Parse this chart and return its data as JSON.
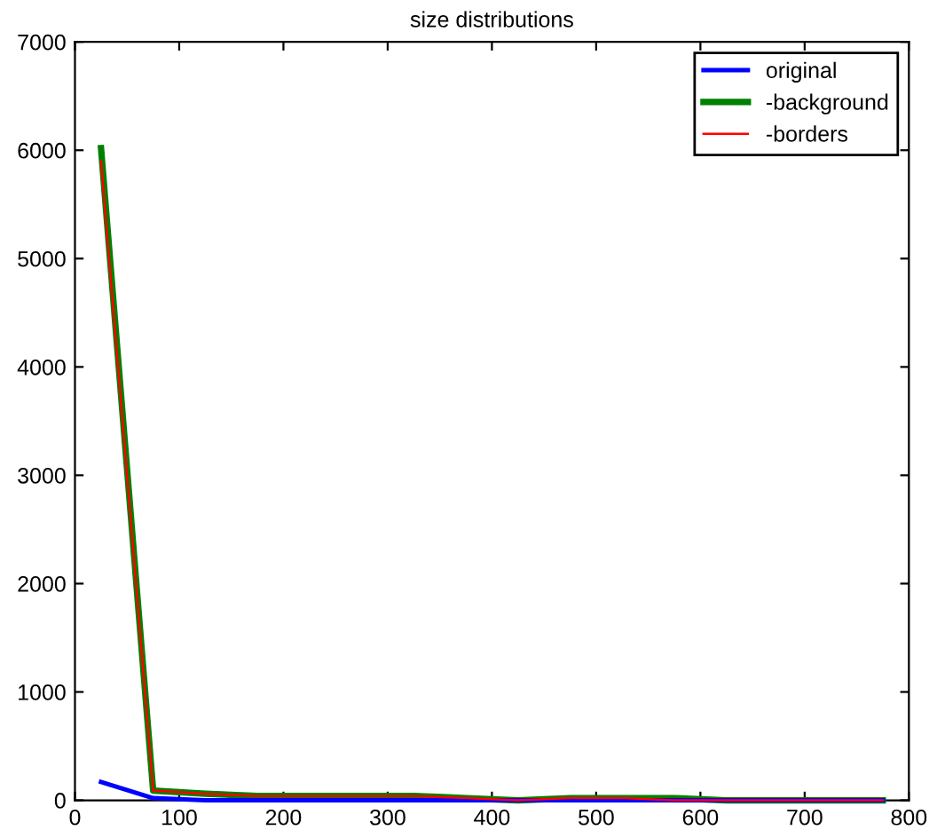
{
  "chart_data": {
    "type": "line",
    "title": "size distributions",
    "x": [
      25,
      75,
      125,
      175,
      225,
      275,
      325,
      375,
      425,
      475,
      525,
      575,
      625,
      675,
      725,
      775
    ],
    "series": [
      {
        "name": "original",
        "color": "#0000ff",
        "values": [
          170,
          20,
          0,
          0,
          0,
          0,
          0,
          0,
          0,
          0,
          0,
          0,
          0,
          0,
          0,
          0
        ]
      },
      {
        "name": "-background",
        "color": "#008000",
        "values": [
          6020,
          90,
          60,
          40,
          40,
          40,
          40,
          20,
          0,
          20,
          20,
          20,
          0,
          0,
          0,
          0
        ]
      },
      {
        "name": "-borders",
        "color": "#ff0000",
        "values": [
          5900,
          90,
          60,
          40,
          40,
          40,
          40,
          20,
          0,
          20,
          20,
          0,
          0,
          0,
          0,
          0
        ]
      }
    ],
    "xlim": [
      0,
      800
    ],
    "xticks": [
      0,
      100,
      200,
      300,
      400,
      500,
      600,
      700,
      800
    ],
    "ylim": [
      0,
      7000
    ],
    "yticks": [
      0,
      1000,
      2000,
      3000,
      4000,
      5000,
      6000,
      7000
    ],
    "legend": "top right",
    "grid": false
  }
}
